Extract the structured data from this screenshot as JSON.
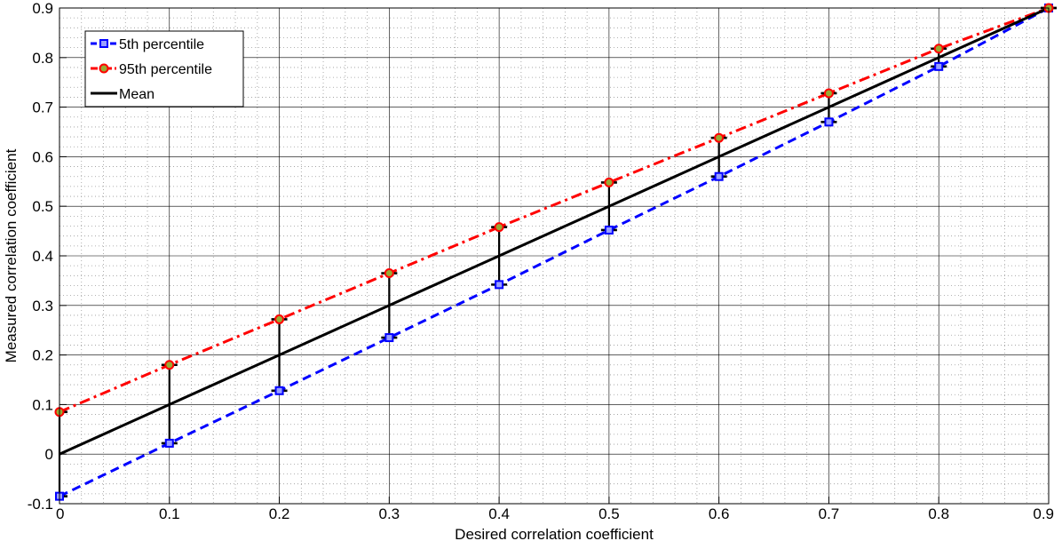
{
  "chart_data": {
    "type": "line",
    "xlabel": "Desired correlation coefficient",
    "ylabel": "Measured correlation coefficient",
    "xlim": [
      0,
      0.9
    ],
    "ylim": [
      -0.1,
      0.9
    ],
    "x_ticks": [
      "0",
      "0.1",
      "0.2",
      "0.3",
      "0.4",
      "0.5",
      "0.6",
      "0.7",
      "0.8",
      "0.9"
    ],
    "y_ticks": [
      "-0.1",
      "0",
      "0.1",
      "0.2",
      "0.3",
      "0.4",
      "0.5",
      "0.6",
      "0.7",
      "0.8",
      "0.9"
    ],
    "grid": true,
    "minor_grid": true,
    "legend_position": "top-left",
    "x": [
      0,
      0.1,
      0.2,
      0.3,
      0.4,
      0.5,
      0.6,
      0.7,
      0.8,
      0.9
    ],
    "series": [
      {
        "name": "5th percentile",
        "color": "#0000ff",
        "style": "dashed",
        "marker": "square",
        "values": [
          -0.085,
          0.022,
          0.128,
          0.235,
          0.342,
          0.452,
          0.56,
          0.67,
          0.782,
          0.9
        ]
      },
      {
        "name": "95th percentile",
        "color": "#ff0000",
        "style": "dash-dot",
        "marker": "circle",
        "values": [
          0.085,
          0.18,
          0.272,
          0.365,
          0.458,
          0.548,
          0.638,
          0.728,
          0.818,
          0.9
        ]
      },
      {
        "name": "Mean",
        "color": "#000000",
        "style": "solid",
        "marker": "none",
        "values": [
          0.0,
          0.1,
          0.2,
          0.3,
          0.4,
          0.5,
          0.6,
          0.7,
          0.8,
          0.9
        ]
      }
    ],
    "error_bars": {
      "color": "#000000",
      "lower_series": "5th percentile",
      "upper_series": "95th percentile"
    }
  }
}
